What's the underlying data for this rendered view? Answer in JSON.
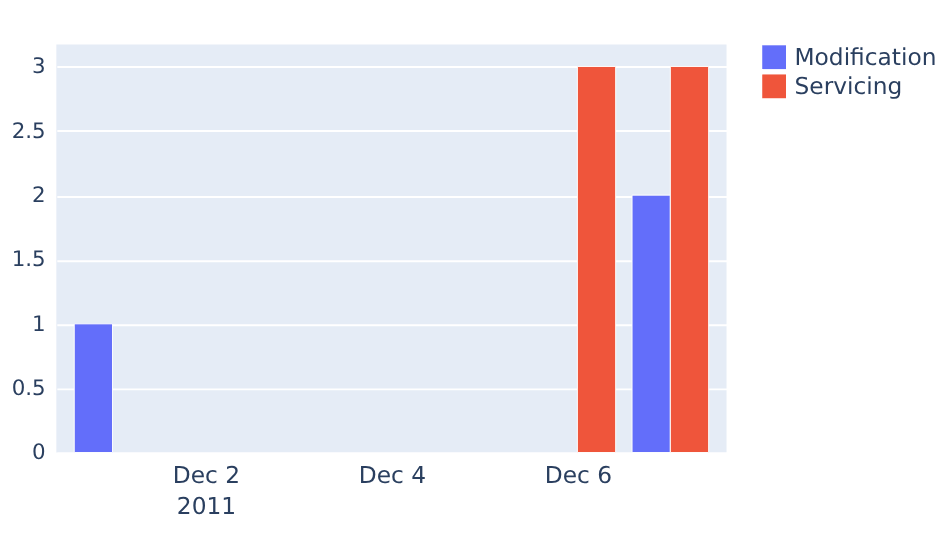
{
  "chart_data": {
    "type": "bar",
    "x": [
      "2011-12-01",
      "2011-12-06",
      "2011-12-07"
    ],
    "series": [
      {
        "name": "Modification",
        "color": "#636efa",
        "values": [
          1,
          null,
          2
        ]
      },
      {
        "name": "Servicing",
        "color": "#ef553b",
        "values": [
          null,
          3,
          3
        ]
      }
    ],
    "xlim": [
      "2011-11-30T12:00",
      "2011-12-07T12:00"
    ],
    "xticks": [
      {
        "value": "2011-12-02",
        "label": "Dec 2\n2011"
      },
      {
        "value": "2011-12-04",
        "label": "Dec 4"
      },
      {
        "value": "2011-12-06",
        "label": "Dec 6"
      }
    ],
    "ylim": [
      0,
      3.17
    ],
    "yticks": [
      0,
      0.5,
      1,
      1.5,
      2,
      2.5,
      3
    ],
    "grid": "y",
    "legend": "top right"
  }
}
